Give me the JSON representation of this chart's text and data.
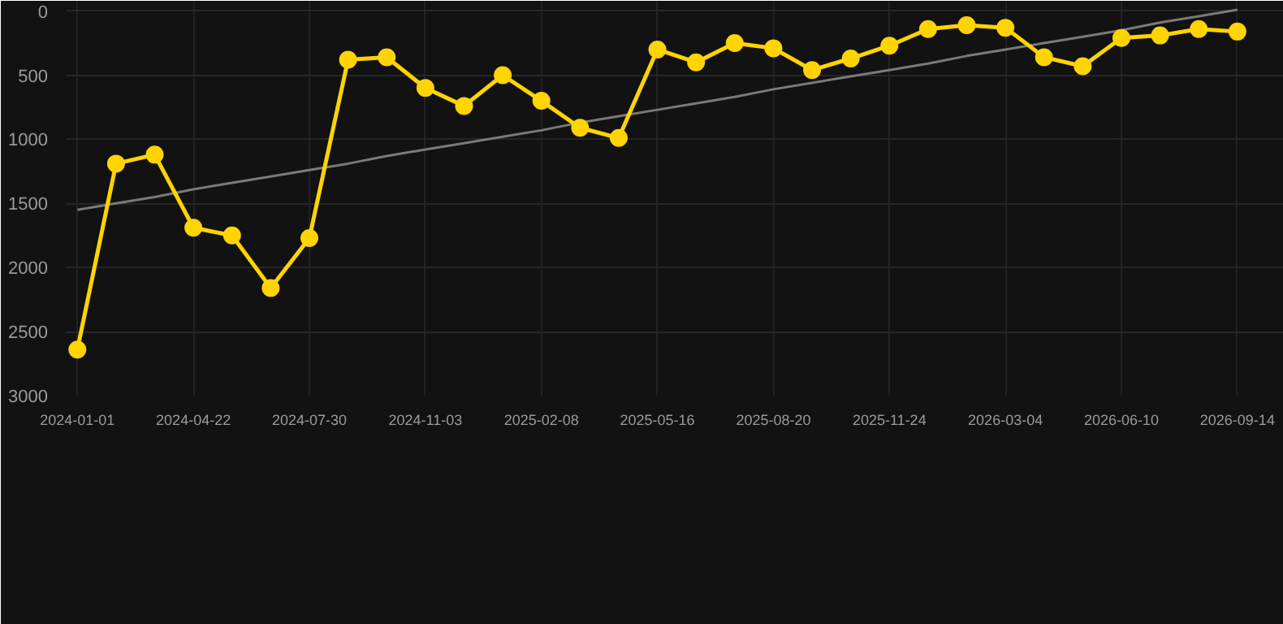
{
  "chart_data": {
    "type": "line",
    "categories": [
      "2024-01-01",
      null,
      null,
      "2024-04-22",
      null,
      null,
      "2024-07-30",
      null,
      null,
      "2024-11-03",
      null,
      null,
      "2025-02-08",
      null,
      null,
      "2025-05-16",
      null,
      null,
      "2025-08-20",
      null,
      null,
      "2025-11-24",
      null,
      null,
      "2026-03-04",
      null,
      null,
      "2026-06-10",
      null,
      null,
      "2026-09-14"
    ],
    "series": [
      {
        "color": "#ffd400",
        "marker": "circle",
        "values": [
          2640,
          1190,
          1120,
          1690,
          1750,
          2160,
          1770,
          380,
          360,
          600,
          740,
          500,
          700,
          910,
          990,
          300,
          400,
          250,
          290,
          460,
          370,
          270,
          140,
          110,
          130,
          360,
          430,
          210,
          190,
          140,
          160
        ]
      },
      {
        "type": "line",
        "color": "#7a7a7a",
        "marker": "none",
        "values": [
          1550,
          1500,
          1450,
          1390,
          1340,
          1290,
          1240,
          1190,
          1130,
          1080,
          1030,
          980,
          930,
          870,
          820,
          770,
          720,
          670,
          610,
          560,
          510,
          460,
          410,
          350,
          300,
          250,
          200,
          150,
          90,
          40,
          -10
        ]
      }
    ],
    "ylim": [
      3000,
      -80
    ],
    "yticks": [
      0,
      500,
      1000,
      1500,
      2000,
      2500,
      3000
    ],
    "grid": true
  }
}
